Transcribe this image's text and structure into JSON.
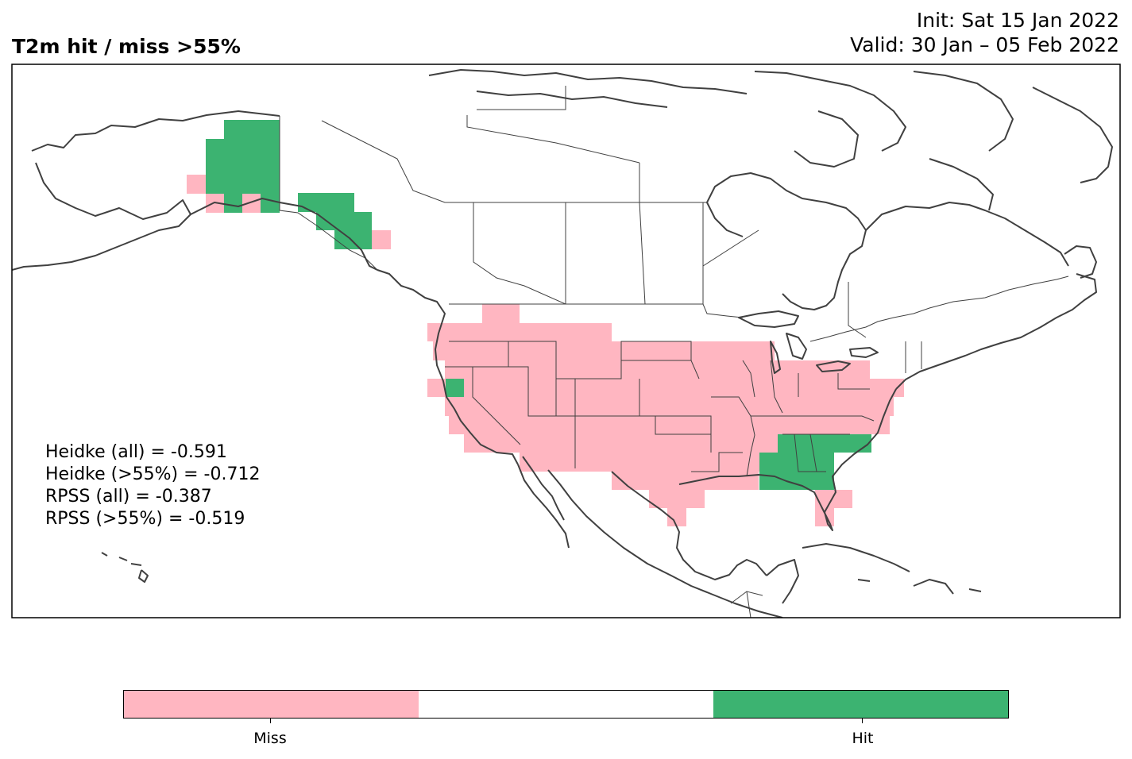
{
  "title": "T2m hit / miss  >55%",
  "init_line": "Init: Sat 15 Jan 2022",
  "valid_line": "Valid: 30 Jan – 05 Feb 2022",
  "stats": [
    "Heidke (all) = -0.591",
    "Heidke (>55%) = -0.712",
    "RPSS (all) = -0.387",
    "RPSS (>55%) = -0.519"
  ],
  "colors": {
    "miss": "#ffb6c1",
    "neutral": "#ffffff",
    "hit": "#3cb371",
    "coast": "#404040"
  },
  "colorbar": {
    "labels": {
      "miss": "Miss",
      "hit": "Hit"
    }
  }
}
